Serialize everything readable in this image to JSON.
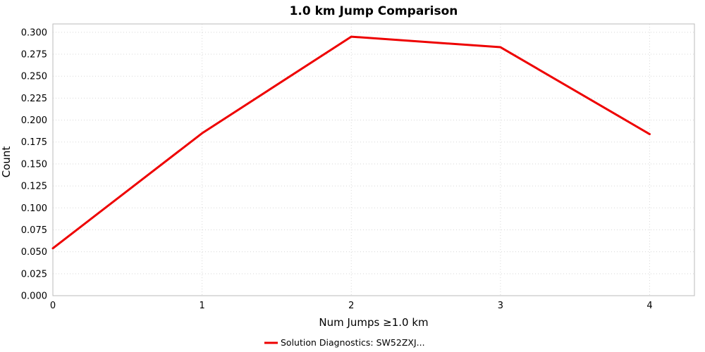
{
  "chart_data": {
    "type": "line",
    "title": "1.0 km Jump Comparison",
    "xlabel": "Num Jumps ≥1.0 km",
    "ylabel": "Count",
    "x": [
      0,
      1,
      2,
      3,
      4
    ],
    "series": [
      {
        "name": "Solution Diagnostics: SW52ZXJ...",
        "values": [
          0.054,
          0.185,
          0.295,
          0.283,
          0.184
        ],
        "color": "#ee0000"
      }
    ],
    "legend_label": "Solution Diagnostics: SW52ZXJ...",
    "xticks": [
      0,
      1,
      2,
      3,
      4
    ],
    "yticks": [
      0.0,
      0.025,
      0.05,
      0.075,
      0.1,
      0.125,
      0.15,
      0.175,
      0.2,
      0.225,
      0.25,
      0.275,
      0.3
    ],
    "xlim": [
      0,
      4.3
    ],
    "ylim": [
      0,
      0.3095
    ],
    "grid": true,
    "legend_position": "bottom-center",
    "line_color": "#ee0000",
    "background_color": "#ffffff"
  }
}
